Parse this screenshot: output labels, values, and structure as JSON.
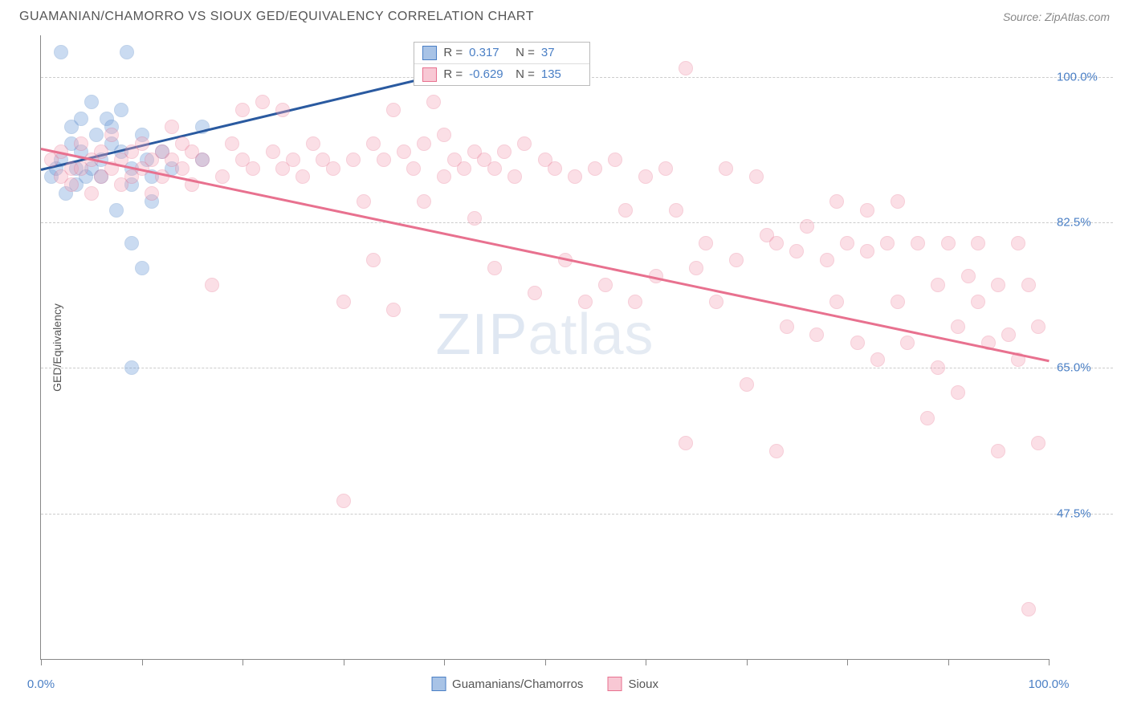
{
  "header": {
    "title": "GUAMANIAN/CHAMORRO VS SIOUX GED/EQUIVALENCY CORRELATION CHART",
    "source": "Source: ZipAtlas.com"
  },
  "watermark": {
    "part1": "ZIP",
    "part2": "atlas"
  },
  "chart": {
    "type": "scatter",
    "background_color": "#ffffff",
    "grid_color": "#cccccc",
    "axis_color": "#888888",
    "xlim": [
      0,
      100
    ],
    "ylim": [
      30,
      105
    ],
    "x_ticks": [
      0,
      10,
      20,
      30,
      40,
      50,
      60,
      70,
      80,
      90,
      100
    ],
    "x_tick_labels": {
      "0": "0.0%",
      "100": "100.0%"
    },
    "y_gridlines": [
      47.5,
      65.0,
      82.5,
      100.0
    ],
    "y_tick_labels": {
      "47.5": "47.5%",
      "65.0": "65.0%",
      "82.5": "82.5%",
      "100.0": "100.0%"
    },
    "y_axis_title": "GED/Equivalency",
    "label_color": "#4a7fc5",
    "label_fontsize": 15,
    "axis_title_color": "#555555",
    "marker_radius": 9,
    "marker_opacity": 0.35,
    "series": [
      {
        "name": "Guamanians/Chamorros",
        "fill_color": "#6b9bd8",
        "stroke_color": "#4a7fc5",
        "r_value": "0.317",
        "n_value": "37",
        "trend": {
          "x1": 0,
          "y1": 89,
          "x2": 45,
          "y2": 102,
          "color": "#2a5aa0"
        },
        "points": [
          [
            1,
            88
          ],
          [
            1.5,
            89
          ],
          [
            2,
            90
          ],
          [
            2,
            103
          ],
          [
            2.5,
            86
          ],
          [
            3,
            92
          ],
          [
            3,
            94
          ],
          [
            3.5,
            87
          ],
          [
            3.5,
            89
          ],
          [
            4,
            95
          ],
          [
            4,
            91
          ],
          [
            4.5,
            88
          ],
          [
            5,
            97
          ],
          [
            5,
            89
          ],
          [
            5.5,
            93
          ],
          [
            6,
            90
          ],
          [
            6,
            88
          ],
          [
            6.5,
            95
          ],
          [
            7,
            92
          ],
          [
            7,
            94
          ],
          [
            7.5,
            84
          ],
          [
            8,
            91
          ],
          [
            8,
            96
          ],
          [
            8.5,
            103
          ],
          [
            9,
            89
          ],
          [
            9,
            87
          ],
          [
            9,
            65
          ],
          [
            9,
            80
          ],
          [
            10,
            93
          ],
          [
            10,
            77
          ],
          [
            10.5,
            90
          ],
          [
            11,
            88
          ],
          [
            11,
            85
          ],
          [
            12,
            91
          ],
          [
            13,
            89
          ],
          [
            16,
            94
          ],
          [
            16,
            90
          ]
        ]
      },
      {
        "name": "Sioux",
        "fill_color": "#f4a6b8",
        "stroke_color": "#e8718f",
        "r_value": "-0.629",
        "n_value": "135",
        "trend": {
          "x1": 0,
          "y1": 91.5,
          "x2": 100,
          "y2": 66,
          "color": "#e8718f"
        },
        "points": [
          [
            1,
            90
          ],
          [
            2,
            88
          ],
          [
            2,
            91
          ],
          [
            3,
            89
          ],
          [
            3,
            87
          ],
          [
            4,
            92
          ],
          [
            4,
            89
          ],
          [
            5,
            90
          ],
          [
            5,
            86
          ],
          [
            6,
            91
          ],
          [
            6,
            88
          ],
          [
            7,
            89
          ],
          [
            7,
            93
          ],
          [
            8,
            90
          ],
          [
            8,
            87
          ],
          [
            9,
            91
          ],
          [
            9,
            88
          ],
          [
            10,
            92
          ],
          [
            10,
            89
          ],
          [
            11,
            90
          ],
          [
            11,
            86
          ],
          [
            12,
            91
          ],
          [
            12,
            88
          ],
          [
            13,
            94
          ],
          [
            13,
            90
          ],
          [
            14,
            92
          ],
          [
            14,
            89
          ],
          [
            15,
            91
          ],
          [
            15,
            87
          ],
          [
            16,
            90
          ],
          [
            17,
            75
          ],
          [
            18,
            88
          ],
          [
            19,
            92
          ],
          [
            20,
            96
          ],
          [
            20,
            90
          ],
          [
            21,
            89
          ],
          [
            22,
            97
          ],
          [
            23,
            91
          ],
          [
            24,
            96
          ],
          [
            24,
            89
          ],
          [
            25,
            90
          ],
          [
            26,
            88
          ],
          [
            27,
            92
          ],
          [
            28,
            90
          ],
          [
            29,
            89
          ],
          [
            30,
            73
          ],
          [
            30,
            49
          ],
          [
            31,
            90
          ],
          [
            32,
            85
          ],
          [
            33,
            92
          ],
          [
            33,
            78
          ],
          [
            34,
            90
          ],
          [
            35,
            96
          ],
          [
            35,
            72
          ],
          [
            36,
            91
          ],
          [
            37,
            89
          ],
          [
            38,
            92
          ],
          [
            38,
            85
          ],
          [
            39,
            97
          ],
          [
            40,
            93
          ],
          [
            40,
            88
          ],
          [
            41,
            90
          ],
          [
            42,
            89
          ],
          [
            43,
            91
          ],
          [
            43,
            83
          ],
          [
            44,
            90
          ],
          [
            45,
            89
          ],
          [
            45,
            77
          ],
          [
            46,
            91
          ],
          [
            47,
            88
          ],
          [
            48,
            92
          ],
          [
            48,
            103
          ],
          [
            49,
            74
          ],
          [
            50,
            90
          ],
          [
            51,
            89
          ],
          [
            52,
            78
          ],
          [
            53,
            88
          ],
          [
            54,
            73
          ],
          [
            55,
            89
          ],
          [
            56,
            75
          ],
          [
            57,
            90
          ],
          [
            58,
            84
          ],
          [
            59,
            73
          ],
          [
            60,
            88
          ],
          [
            61,
            76
          ],
          [
            62,
            89
          ],
          [
            63,
            84
          ],
          [
            64,
            101
          ],
          [
            64,
            56
          ],
          [
            65,
            77
          ],
          [
            66,
            80
          ],
          [
            67,
            73
          ],
          [
            68,
            89
          ],
          [
            69,
            78
          ],
          [
            70,
            63
          ],
          [
            71,
            88
          ],
          [
            72,
            81
          ],
          [
            73,
            80
          ],
          [
            73,
            55
          ],
          [
            74,
            70
          ],
          [
            75,
            79
          ],
          [
            76,
            82
          ],
          [
            77,
            69
          ],
          [
            78,
            78
          ],
          [
            79,
            85
          ],
          [
            79,
            73
          ],
          [
            80,
            80
          ],
          [
            81,
            68
          ],
          [
            82,
            84
          ],
          [
            82,
            79
          ],
          [
            83,
            66
          ],
          [
            84,
            80
          ],
          [
            85,
            85
          ],
          [
            85,
            73
          ],
          [
            86,
            68
          ],
          [
            87,
            80
          ],
          [
            88,
            59
          ],
          [
            89,
            75
          ],
          [
            89,
            65
          ],
          [
            90,
            80
          ],
          [
            91,
            70
          ],
          [
            91,
            62
          ],
          [
            92,
            76
          ],
          [
            93,
            80
          ],
          [
            93,
            73
          ],
          [
            94,
            68
          ],
          [
            95,
            75
          ],
          [
            95,
            55
          ],
          [
            96,
            69
          ],
          [
            97,
            80
          ],
          [
            97,
            66
          ],
          [
            98,
            36
          ],
          [
            98,
            75
          ],
          [
            99,
            56
          ],
          [
            99,
            70
          ]
        ]
      }
    ]
  },
  "legend": {
    "items": [
      {
        "label": "Guamanians/Chamorros",
        "fill": "#a8c3e6",
        "stroke": "#4a7fc5"
      },
      {
        "label": "Sioux",
        "fill": "#f8c8d4",
        "stroke": "#e8718f"
      }
    ]
  },
  "stats_box": {
    "top_pct": 1,
    "left_pct": 37,
    "rows": [
      {
        "swatch_fill": "#a8c3e6",
        "swatch_stroke": "#4a7fc5",
        "r_label": "R =",
        "r_val": "0.317",
        "n_label": "N =",
        "n_val": "37"
      },
      {
        "swatch_fill": "#f8c8d4",
        "swatch_stroke": "#e8718f",
        "r_label": "R =",
        "r_val": "-0.629",
        "n_label": "N =",
        "n_val": "135"
      }
    ]
  }
}
